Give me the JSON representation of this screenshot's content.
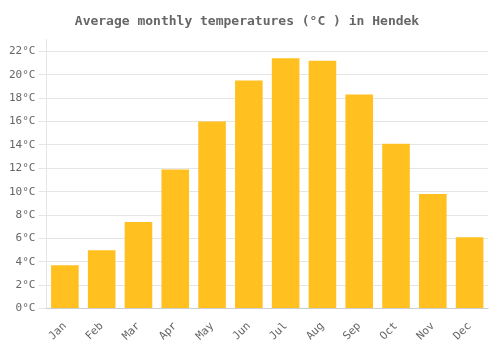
{
  "chart_data": {
    "type": "bar",
    "title": "Average monthly temperatures (°C ) in Hendek",
    "categories": [
      "Jan",
      "Feb",
      "Mar",
      "Apr",
      "May",
      "Jun",
      "Jul",
      "Aug",
      "Sep",
      "Oct",
      "Nov",
      "Dec"
    ],
    "values": [
      3.7,
      5.0,
      7.4,
      11.9,
      16.0,
      19.5,
      21.4,
      21.2,
      18.3,
      14.1,
      9.8,
      6.1
    ],
    "color": "#FFC020",
    "ylim": [
      0,
      23
    ],
    "yticks": [
      {
        "value": 0,
        "label": "0°C"
      },
      {
        "value": 2,
        "label": "2°C"
      },
      {
        "value": 4,
        "label": "4°C"
      },
      {
        "value": 6,
        "label": "6°C"
      },
      {
        "value": 8,
        "label": "8°C"
      },
      {
        "value": 10,
        "label": "10°C"
      },
      {
        "value": 12,
        "label": "12°C"
      },
      {
        "value": 14,
        "label": "14°C"
      },
      {
        "value": 16,
        "label": "16°C"
      },
      {
        "value": 18,
        "label": "18°C"
      },
      {
        "value": 20,
        "label": "20°C"
      },
      {
        "value": 22,
        "label": "22°C"
      }
    ],
    "grid": true
  }
}
